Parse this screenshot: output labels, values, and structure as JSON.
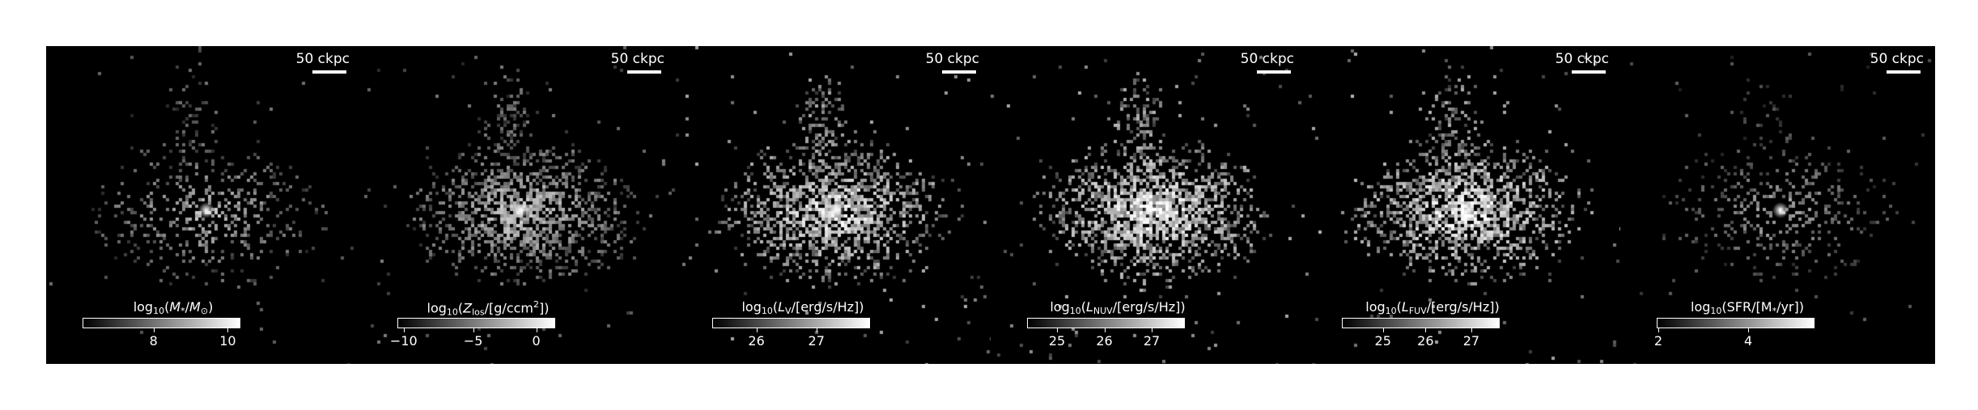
{
  "panels": [
    {
      "scale_label": "50 ckpc",
      "colorbar_label": "log10(M*/M⊙)",
      "ticks": [
        "8",
        "10"
      ],
      "tick_fractions": [
        0.45,
        0.92
      ],
      "signal_density": 0.35,
      "brightness": 0.55
    },
    {
      "scale_label": "50 ckpc",
      "colorbar_label": "log10(Zlos/[g/ccm2])",
      "ticks": [
        "−10",
        "−5",
        "0"
      ],
      "tick_fractions": [
        0.04,
        0.48,
        0.88
      ],
      "signal_density": 0.85,
      "brightness": 0.6
    },
    {
      "scale_label": "50 ckpc",
      "colorbar_label": "log10(LV/[erg/s/Hz])",
      "ticks": [
        "26",
        "27"
      ],
      "tick_fractions": [
        0.28,
        0.66
      ],
      "signal_density": 0.9,
      "brightness": 0.8
    },
    {
      "scale_label": "50 ckpc",
      "colorbar_label": "log10(LNUV/[erg/s/Hz])",
      "ticks": [
        "25",
        "26",
        "27"
      ],
      "tick_fractions": [
        0.19,
        0.49,
        0.79
      ],
      "signal_density": 0.95,
      "brightness": 0.85
    },
    {
      "scale_label": "50 ckpc",
      "colorbar_label": "log10(LFUV/[erg/s/Hz])",
      "ticks": [
        "25",
        "26",
        "27"
      ],
      "tick_fractions": [
        0.26,
        0.53,
        0.82
      ],
      "signal_density": 0.95,
      "brightness": 0.85
    },
    {
      "scale_label": "50 ckpc",
      "colorbar_label": "log10(SFR/[M*/yr])",
      "ticks": [
        "2",
        "4"
      ],
      "tick_fractions": [
        0.01,
        0.58
      ],
      "signal_density": 0.3,
      "brightness": 0.45
    }
  ]
}
